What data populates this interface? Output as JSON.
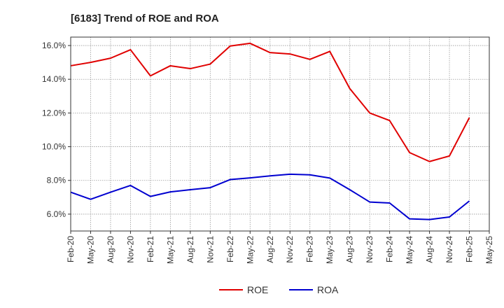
{
  "chart_data": {
    "type": "line",
    "title": "[6183]  Trend of ROE and ROA",
    "xlabel": "",
    "ylabel": "",
    "categories": [
      "Feb-20",
      "May-20",
      "Aug-20",
      "Nov-20",
      "Feb-21",
      "May-21",
      "Aug-21",
      "Nov-21",
      "Feb-22",
      "May-22",
      "Aug-22",
      "Nov-22",
      "Feb-23",
      "May-23",
      "Aug-23",
      "Nov-23",
      "Feb-24",
      "May-24",
      "Aug-24",
      "Nov-24",
      "Feb-25",
      "May-25"
    ],
    "ylim": [
      5.0,
      16.5
    ],
    "yticks": [
      6.0,
      8.0,
      10.0,
      12.0,
      14.0,
      16.0
    ],
    "ytick_labels": [
      "6.0%",
      "8.0%",
      "10.0%",
      "12.0%",
      "14.0%",
      "16.0%"
    ],
    "grid": true,
    "legend": "bottom",
    "series": [
      {
        "name": "ROE",
        "color": "#e00000",
        "values": [
          14.8,
          15.0,
          15.25,
          15.75,
          14.2,
          14.8,
          14.63,
          14.9,
          15.97,
          16.13,
          15.58,
          15.5,
          15.18,
          15.65,
          13.45,
          12.0,
          11.55,
          9.65,
          9.12,
          9.45,
          11.72,
          null
        ]
      },
      {
        "name": "ROA",
        "color": "#0000d0",
        "values": [
          7.3,
          6.88,
          7.3,
          7.7,
          7.05,
          7.32,
          7.45,
          7.57,
          8.05,
          8.15,
          8.27,
          8.37,
          8.33,
          8.14,
          7.45,
          6.72,
          6.66,
          5.72,
          5.68,
          5.83,
          6.78,
          null
        ]
      }
    ]
  }
}
